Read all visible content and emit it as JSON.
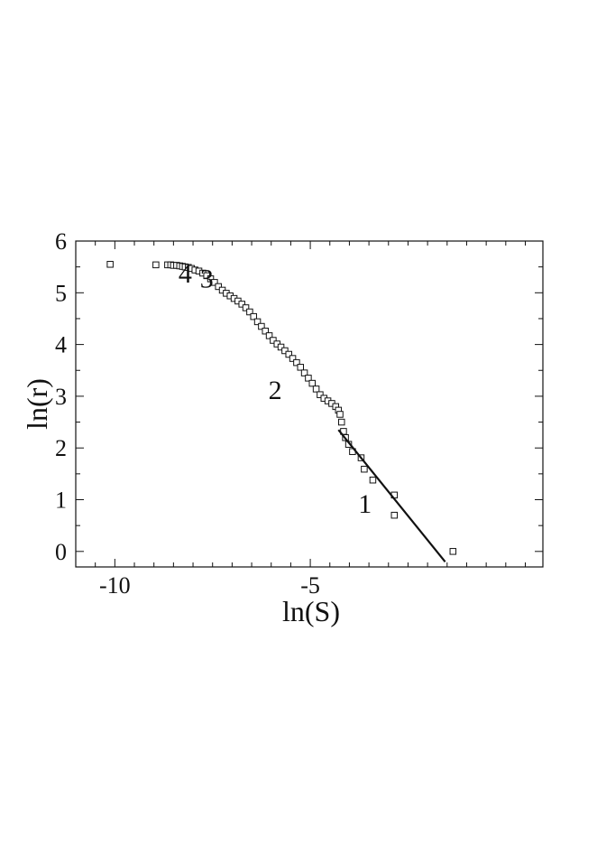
{
  "chart_data": {
    "type": "scatter",
    "xlabel": "ln(S)",
    "ylabel": "ln(r)",
    "xlim": [
      -11.0,
      0.95
    ],
    "ylim": [
      -0.3,
      6.0
    ],
    "x_ticks": [
      -10,
      -5
    ],
    "x_tick_labels": [
      "-10",
      "-5"
    ],
    "y_ticks": [
      0,
      1,
      2,
      3,
      4,
      5,
      6
    ],
    "y_tick_labels": [
      "0",
      "1",
      "2",
      "3",
      "4",
      "5",
      "6"
    ],
    "grid": false,
    "legend": "none",
    "series": [
      {
        "marker": "open-square",
        "x": [
          -10.12,
          -8.95,
          -8.65,
          -8.57,
          -8.5,
          -8.42,
          -8.34,
          -8.27,
          -8.2,
          -8.12,
          -8.04,
          -7.95,
          -7.85,
          -7.75,
          -7.65,
          -7.55,
          -7.45,
          -7.35,
          -7.25,
          -7.15,
          -7.05,
          -6.95,
          -6.85,
          -6.75,
          -6.65,
          -6.55,
          -6.45,
          -6.35,
          -6.25,
          -6.15,
          -6.05,
          -5.95,
          -5.85,
          -5.75,
          -5.65,
          -5.55,
          -5.45,
          -5.35,
          -5.25,
          -5.15,
          -5.05,
          -4.95,
          -4.85,
          -4.75,
          -4.65,
          -4.55,
          -4.45,
          -4.35,
          -4.28,
          -4.24,
          -4.2,
          -4.15,
          -4.1,
          -4.02,
          -3.92,
          -3.7,
          -3.62,
          -3.4,
          -2.85,
          -2.85,
          -1.35
        ],
        "y": [
          5.55,
          5.54,
          5.54,
          5.54,
          5.53,
          5.53,
          5.52,
          5.51,
          5.5,
          5.49,
          5.47,
          5.44,
          5.42,
          5.38,
          5.33,
          5.27,
          5.2,
          5.12,
          5.05,
          4.99,
          4.94,
          4.89,
          4.84,
          4.78,
          4.71,
          4.63,
          4.54,
          4.44,
          4.35,
          4.26,
          4.17,
          4.08,
          4.01,
          3.95,
          3.88,
          3.81,
          3.73,
          3.65,
          3.56,
          3.45,
          3.35,
          3.25,
          3.14,
          3.03,
          2.96,
          2.91,
          2.86,
          2.8,
          2.73,
          2.65,
          2.5,
          2.32,
          2.2,
          2.07,
          1.93,
          1.81,
          1.59,
          1.38,
          1.09,
          0.7,
          0.0
        ]
      },
      {
        "type": "line",
        "x": [
          -4.28,
          -1.55
        ],
        "y": [
          2.35,
          -0.2
        ]
      }
    ],
    "annotations": [
      {
        "text": "1",
        "x": -3.6,
        "y": 0.75
      },
      {
        "text": "2",
        "x": -5.9,
        "y": 2.95
      },
      {
        "text": "3",
        "x": -7.65,
        "y": 5.1
      },
      {
        "text": "4",
        "x": -8.2,
        "y": 5.2
      }
    ]
  }
}
